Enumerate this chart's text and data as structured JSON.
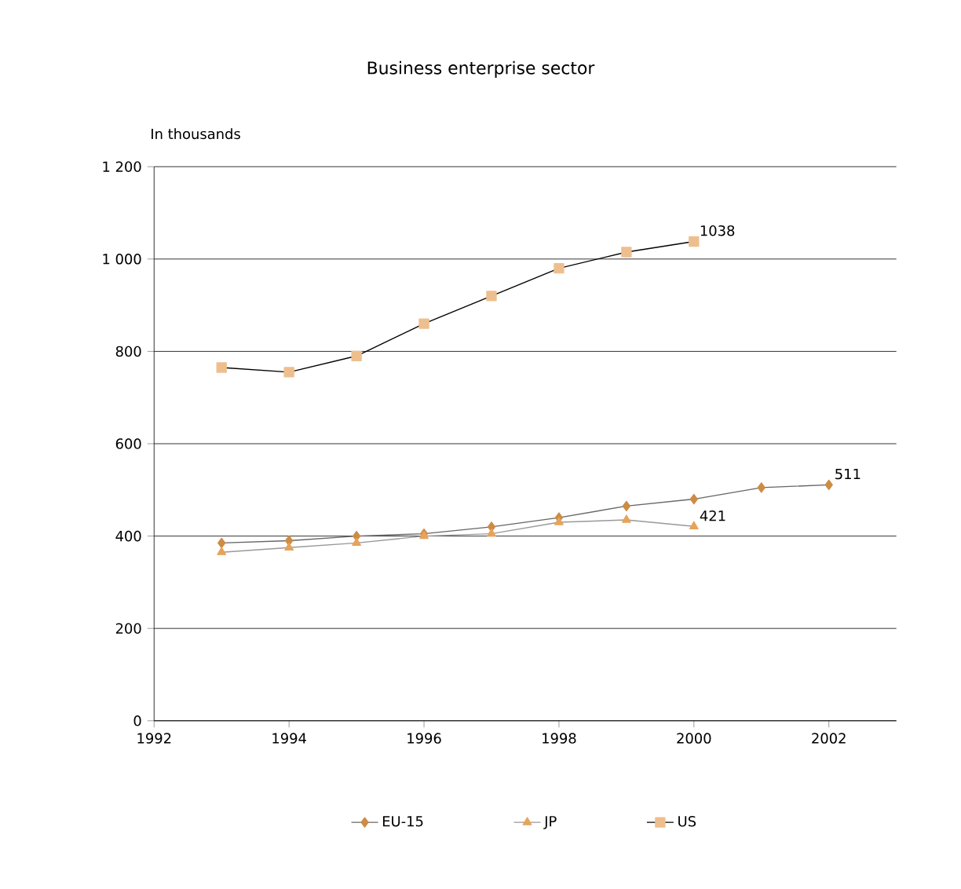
{
  "chart_data": {
    "type": "line",
    "title": "Business enterprise sector",
    "ylabel": "In thousands",
    "x": [
      1993,
      1994,
      1995,
      1996,
      1997,
      1998,
      1999,
      2000,
      2001,
      2002
    ],
    "series": [
      {
        "name": "EU-15",
        "color": "#cd8c45",
        "marker": "diamond",
        "values": [
          385,
          390,
          400,
          405,
          420,
          440,
          465,
          480,
          505,
          511
        ],
        "value_labels": [
          null,
          null,
          null,
          null,
          null,
          null,
          null,
          null,
          null,
          "511"
        ]
      },
      {
        "name": "JP",
        "color": "#e8a35a",
        "marker": "triangle",
        "values": [
          365,
          375,
          385,
          400,
          405,
          430,
          435,
          421,
          null,
          null
        ],
        "value_labels": [
          null,
          null,
          null,
          null,
          null,
          null,
          null,
          "421",
          null,
          null
        ]
      },
      {
        "name": "US",
        "color": "#eebf8e",
        "marker": "square",
        "values": [
          765,
          755,
          790,
          860,
          920,
          980,
          1015,
          1038,
          null,
          null
        ],
        "value_labels": [
          null,
          null,
          null,
          null,
          null,
          null,
          null,
          "1038",
          null,
          null
        ]
      }
    ],
    "xlim": [
      1992,
      2003
    ],
    "xticks": [
      1992,
      1994,
      1996,
      1998,
      2000,
      2002
    ],
    "ylim": [
      0,
      1200
    ],
    "yticks": [
      0,
      200,
      400,
      600,
      800,
      {
        "value": 1000,
        "label": "1 000"
      },
      {
        "value": 1200,
        "label": "1 200"
      }
    ],
    "grid": "y",
    "legend": "bottom"
  }
}
